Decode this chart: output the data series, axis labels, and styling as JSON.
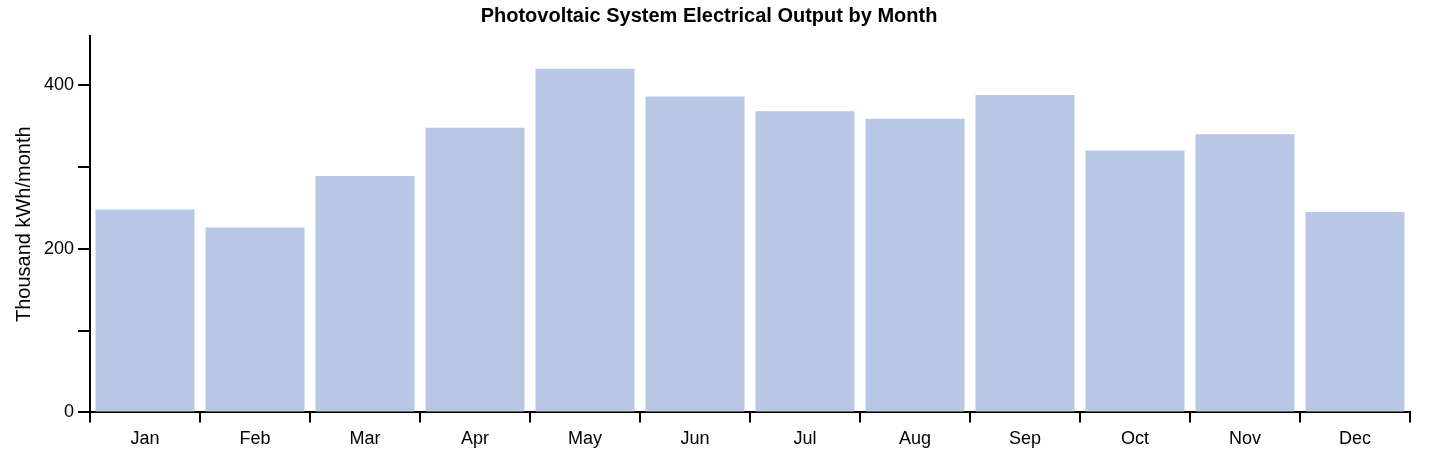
{
  "chart_data": {
    "type": "bar",
    "title": "Photovoltaic System Electrical Output by Month",
    "ylabel": "Thousand kWh/month",
    "categories": [
      "Jan",
      "Feb",
      "Mar",
      "Apr",
      "May",
      "Jun",
      "Jul",
      "Aug",
      "Sep",
      "Oct",
      "Nov",
      "Dec"
    ],
    "values": [
      248,
      226,
      289,
      348,
      420,
      386,
      368,
      359,
      388,
      320,
      340,
      245
    ],
    "color": "#b7c7e4",
    "ylim": [
      0,
      460
    ],
    "yticks": [
      0,
      {
        "value": 100,
        "label": null
      },
      200,
      {
        "value": 300,
        "label": null
      },
      400
    ],
    "grid": false,
    "legend": false
  }
}
